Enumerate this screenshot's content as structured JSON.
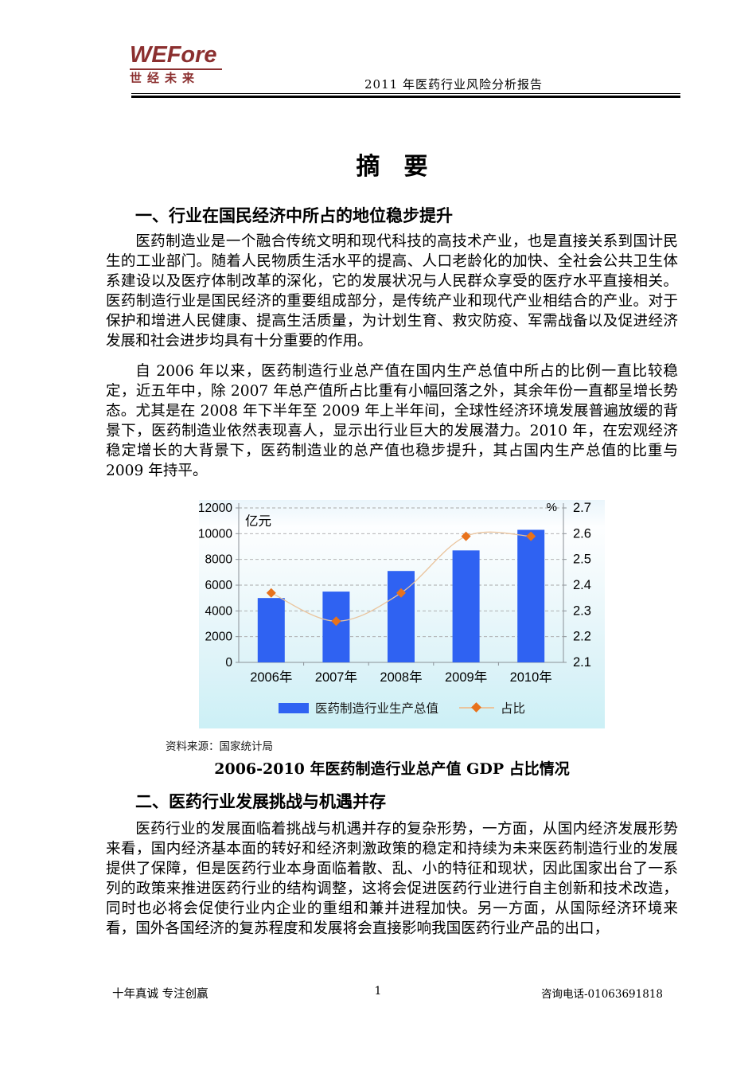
{
  "header": {
    "logo_en": "WEFore",
    "logo_cn": "世经未来",
    "report_title": "2011 年医药行业风险分析报告"
  },
  "doc_title": "摘　要",
  "sections": [
    {
      "heading": "一、行业在国民经济中所占的地位稳步提升",
      "paragraphs": [
        "医药制造业是一个融合传统文明和现代科技的高技术产业，也是直接关系到国计民生的工业部门。随着人民物质生活水平的提高、人口老龄化的加快、全社会公共卫生体系建设以及医疗体制改革的深化，它的发展状况与人民群众享受的医疗水平直接相关。医药制造行业是国民经济的重要组成部分，是传统产业和现代产业相结合的产业。对于保护和增进人民健康、提高生活质量，为计划生育、救灾防疫、军需战备以及促进经济发展和社会进步均具有十分重要的作用。",
        "自 2006 年以来，医药制造行业总产值在国内生产总值中所占的比例一直比较稳定，近五年中，除 2007 年总产值所占比重有小幅回落之外，其余年份一直都呈增长势态。尤其是在 2008 年下半年至 2009 年上半年间，全球性经济环境发展普遍放缓的背景下，医药制造业依然表现喜人，显示出行业巨大的发展潜力。2010 年，在宏观经济稳定增长的大背景下，医药制造业的总产值也稳步提升，其占国内生产总值的比重与 2009 年持平。"
      ]
    },
    {
      "heading": "二、医药行业发展挑战与机遇并存",
      "paragraphs": [
        "医药行业的发展面临着挑战与机遇并存的复杂形势，一方面，从国内经济发展形势来看，国内经济基本面的转好和经济刺激政策的稳定和持续为未来医药制造行业的发展提供了保障，但是医药行业本身面临着散、乱、小的特征和现状，因此国家出台了一系列的政策来推进医药行业的结构调整，这将会促进医药行业进行自主创新和技术改造，同时也必将会促使行业内企业的重组和兼并进程加快。另一方面，从国际经济环境来看，国外各国经济的复苏程度和发展将会直接影响我国医药行业产品的出口，"
      ]
    }
  ],
  "chart_source": "资料来源：国家统计局",
  "chart_caption": "2006-2010 年医药制造行业总产值 GDP 占比情况",
  "footer": {
    "slogan": "十年真诚 专注创赢",
    "page_number": "1",
    "phone": "咨询电话-01063691818"
  },
  "chart_data": {
    "type": "bar",
    "subtype": "bar+line combo, dual axis",
    "categories": [
      "2006年",
      "2007年",
      "2008年",
      "2009年",
      "2010年"
    ],
    "series": [
      {
        "name": "医药制造行业生产总值",
        "type": "bar",
        "axis": "left",
        "values": [
          5000,
          5500,
          7100,
          8700,
          10300
        ]
      },
      {
        "name": "占比",
        "type": "line",
        "axis": "right",
        "values": [
          2.37,
          2.26,
          2.37,
          2.59,
          2.59
        ]
      }
    ],
    "left_axis": {
      "unit": "亿元",
      "min": 0,
      "max": 12000,
      "ticks": [
        0,
        2000,
        4000,
        6000,
        8000,
        10000,
        12000
      ]
    },
    "right_axis": {
      "unit": "%",
      "min": 2.1,
      "max": 2.7,
      "ticks": [
        2.1,
        2.2,
        2.3,
        2.4,
        2.5,
        2.6,
        2.7
      ]
    },
    "grid": "horizontal dashed",
    "legend_position": "bottom",
    "colors": {
      "bar": "#2f62f2",
      "line": "#eac49d",
      "marker": "#e8721c",
      "grid": "#a8a8a8",
      "axis": "#8a9096"
    }
  }
}
